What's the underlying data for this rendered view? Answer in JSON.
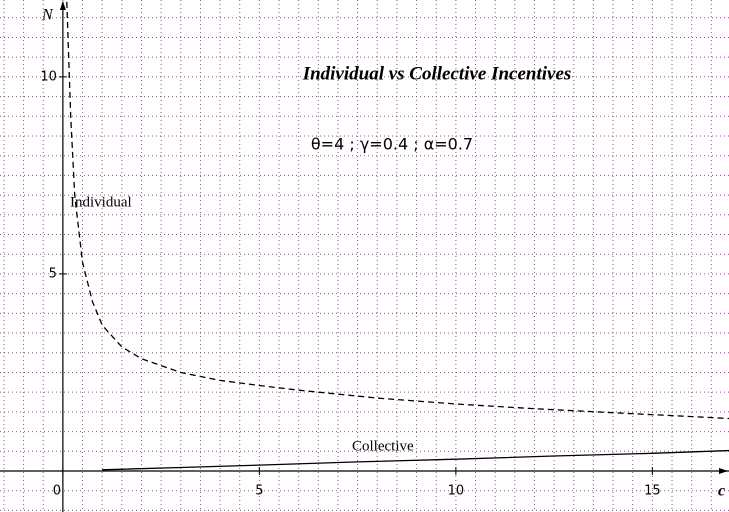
{
  "chart_data": {
    "type": "line",
    "title": "Individual vs Collective Incentives",
    "subtitle": "θ=4 ; γ=0.4 ; α=0.7",
    "x_label": "c",
    "y_label": "N",
    "series": [
      {
        "name": "Individual",
        "color": "#000000",
        "dashed": true,
        "x": [
          0.1,
          0.2,
          0.3,
          0.5,
          0.75,
          1,
          1.5,
          2,
          3,
          4,
          5,
          6,
          8,
          10,
          12,
          14,
          16,
          17
        ],
        "values": [
          11.9,
          9.0,
          7.0,
          5.3,
          4.3,
          3.7,
          3.15,
          2.85,
          2.5,
          2.3,
          2.17,
          2.05,
          1.85,
          1.7,
          1.58,
          1.48,
          1.38,
          1.33
        ]
      },
      {
        "name": "Collective",
        "color": "#000000",
        "dashed": false,
        "x": [
          1,
          3,
          5,
          7.5,
          10,
          12.5,
          15,
          17
        ],
        "values": [
          0.03,
          0.09,
          0.15,
          0.23,
          0.3,
          0.38,
          0.45,
          0.52
        ]
      }
    ],
    "xlim": [
      -1.6,
      16.95
    ],
    "ylim": [
      -1.04,
      11.95
    ],
    "xticks": [
      0,
      5,
      10,
      15
    ],
    "yticks": [
      5,
      10
    ],
    "grid": true,
    "grid_step": 0.5
  }
}
